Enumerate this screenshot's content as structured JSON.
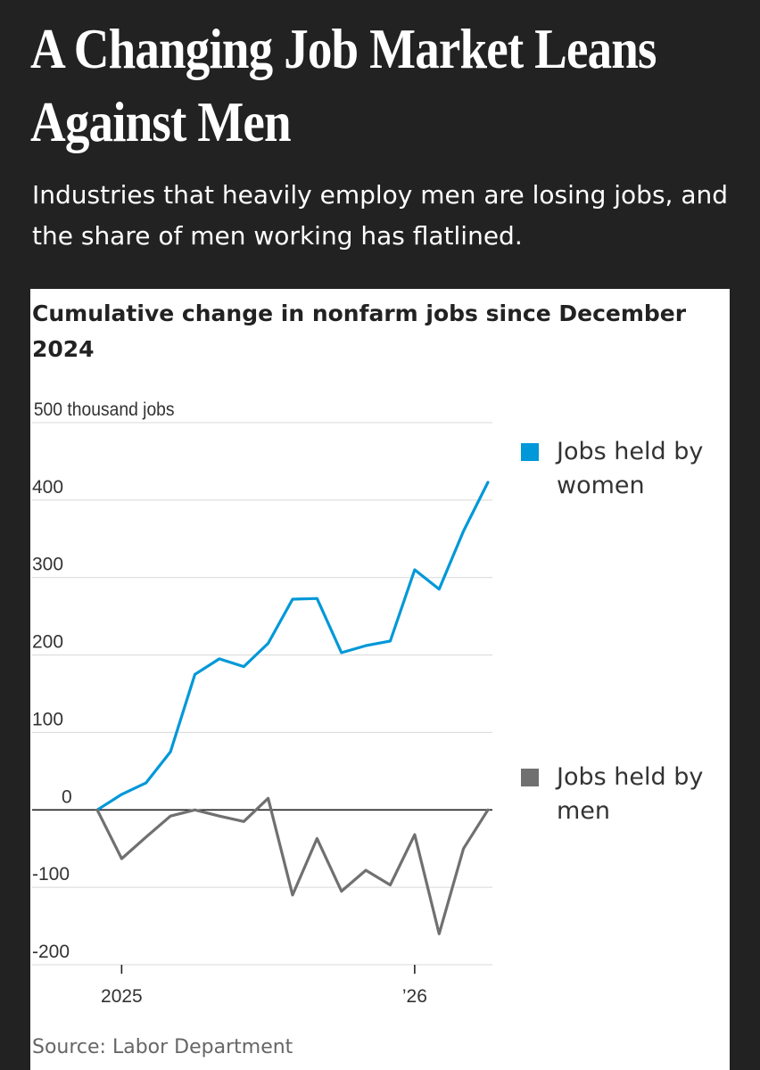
{
  "headline": "A Changing Job Market Leans Against Men",
  "dek": "Industries that heavily employ men are losing jobs, and the share of men working has flatlined.",
  "source": "Source: Labor Department",
  "colors": {
    "women": "#0098d8",
    "men": "#707070",
    "background": "#222222"
  },
  "chart_data": {
    "type": "line",
    "title": "Cumulative change in nonfarm jobs since December 2024",
    "xlabel": "",
    "ylabel": "thousand jobs",
    "ylim": [
      -200,
      500
    ],
    "yticks": [
      500,
      400,
      300,
      200,
      100,
      0,
      -100,
      -200
    ],
    "ytick_labels": [
      "500 thousand jobs",
      "400",
      "300",
      "200",
      "100",
      "0",
      "-100",
      "-200"
    ],
    "xticks": [
      {
        "x": "2025-01",
        "label": "2025"
      },
      {
        "x": "2026-01",
        "label": "’26"
      }
    ],
    "grid": true,
    "legend": "right",
    "x": [
      "2024-12",
      "2025-01",
      "2025-02",
      "2025-03",
      "2025-04",
      "2025-05",
      "2025-06",
      "2025-07",
      "2025-08",
      "2025-09",
      "2025-10",
      "2025-11",
      "2025-12",
      "2026-01",
      "2026-02",
      "2026-03",
      "2026-04"
    ],
    "series": [
      {
        "name": "Jobs held by women",
        "color": "#0098d8",
        "values": [
          0,
          20,
          35,
          75,
          175,
          195,
          185,
          215,
          272,
          273,
          203,
          212,
          218,
          310,
          285,
          360,
          423
        ]
      },
      {
        "name": "Jobs held by men",
        "color": "#707070",
        "values": [
          0,
          -63,
          -35,
          -8,
          0,
          -8,
          -15,
          15,
          -110,
          -37,
          -105,
          -78,
          -97,
          -32,
          -160,
          -50,
          0
        ]
      }
    ]
  }
}
